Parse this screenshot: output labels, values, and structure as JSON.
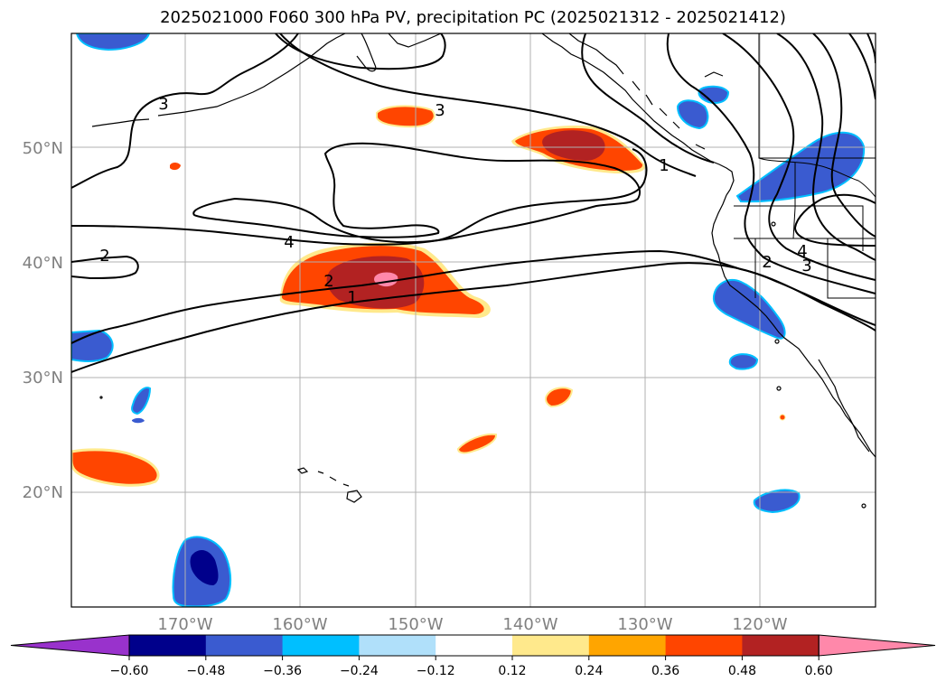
{
  "title": "2025021000 F060 300 hPa PV, precipitation PC (2025021312 - 2025021412)",
  "lat_labels": [
    "50°N",
    "40°N",
    "30°N",
    "20°N"
  ],
  "lon_labels": [
    "170°W",
    "160°W",
    "150°W",
    "140°W",
    "130°W",
    "120°W"
  ],
  "contour_labels": [
    "3",
    "3",
    "4",
    "2",
    "2",
    "1",
    "1",
    "4",
    "3",
    "2"
  ],
  "colorbar": {
    "ticks": [
      "−0.60",
      "−0.48",
      "−0.36",
      "−0.24",
      "−0.12",
      "0.12",
      "0.24",
      "0.36",
      "0.48",
      "0.60"
    ],
    "colors": [
      "#9932cc",
      "#00008b",
      "#3a5bd0",
      "#00bfff",
      "#b0e0fa",
      "#ffffff",
      "#ffe98c",
      "#ffa500",
      "#ff4500",
      "#b22222",
      "#ff88aa"
    ]
  },
  "colors": {
    "neg_light": "#00bfff",
    "neg_mid": "#3a5bd0",
    "neg_dark": "#00008b",
    "pos_light": "#ffe98c",
    "pos_mid": "#ff4500",
    "pos_dark": "#b22222",
    "pos_max": "#ff88aa",
    "grid": "#b0b0b0"
  }
}
